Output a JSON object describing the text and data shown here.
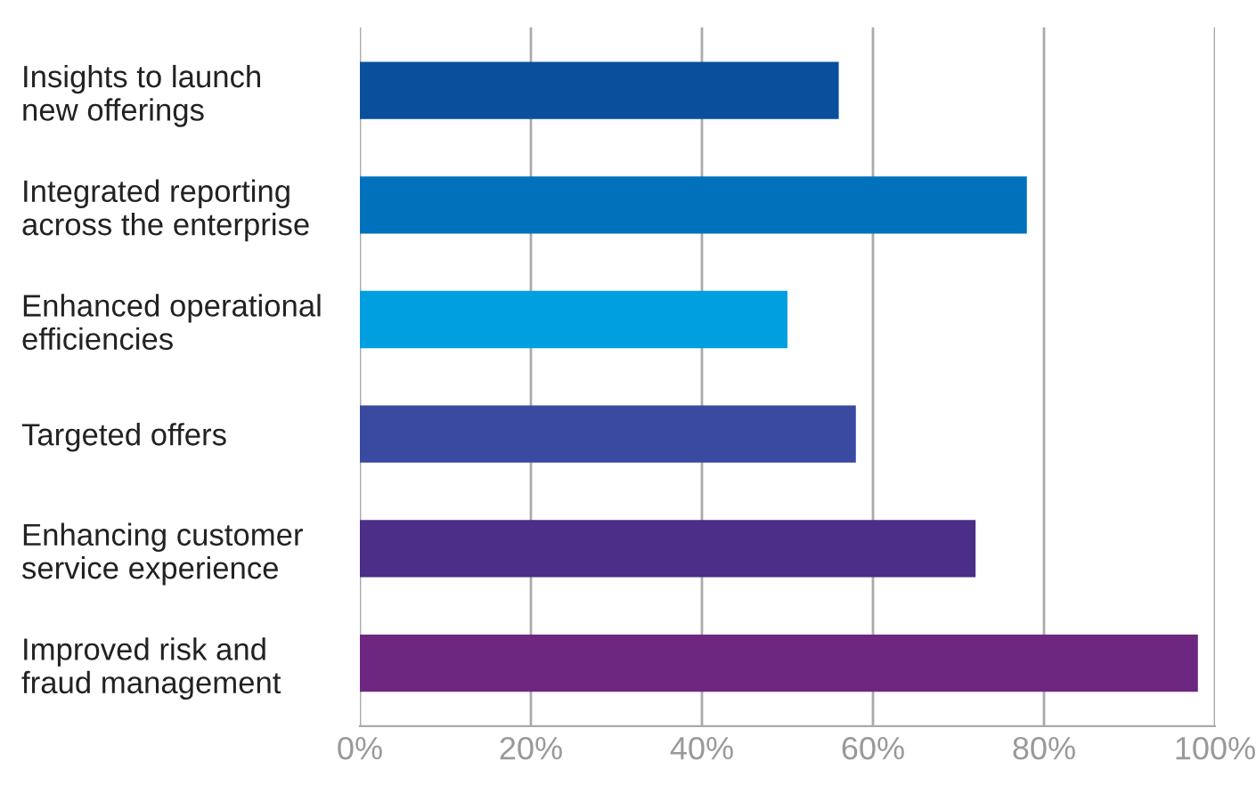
{
  "chart_data": {
    "type": "bar",
    "orientation": "horizontal",
    "categories": [
      "Insights to launch\nnew offerings",
      "Integrated reporting\nacross the enterprise",
      "Enhanced operational\nefficiencies",
      "Targeted offers",
      "Enhancing customer\nservice experience",
      "Improved risk and\nfraud management"
    ],
    "values": [
      56,
      78,
      50,
      58,
      72,
      98
    ],
    "colors": [
      "#0a4f9c",
      "#0072bc",
      "#009fdf",
      "#3a4aa0",
      "#4a2e87",
      "#6e2780"
    ],
    "xlim": [
      0,
      100
    ],
    "xticks": [
      {
        "value": 0,
        "label": "0%"
      },
      {
        "value": 20,
        "label": "20%"
      },
      {
        "value": 40,
        "label": "40%"
      },
      {
        "value": 60,
        "label": "60%"
      },
      {
        "value": 80,
        "label": "80%"
      },
      {
        "value": 100,
        "label": "100%"
      }
    ],
    "grid": "x",
    "legend": false
  }
}
